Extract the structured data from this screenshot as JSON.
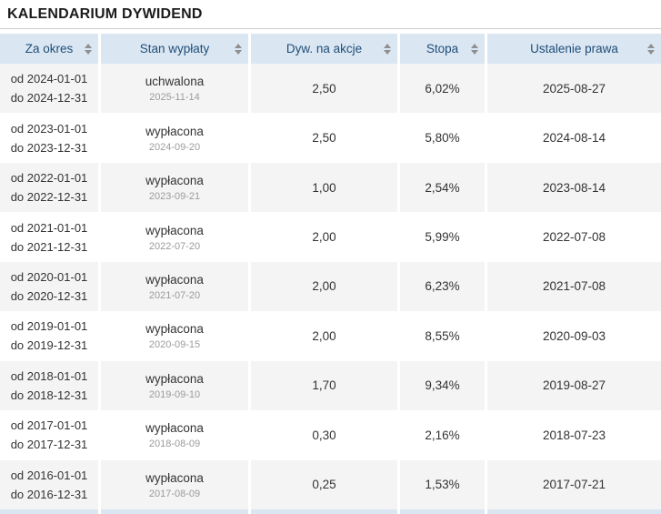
{
  "title": "KALENDARIUM DYWIDEND",
  "colors": {
    "header_bg": "#dae6f2",
    "header_text": "#1f4e78",
    "row_alt_bg": "#f4f4f4",
    "body_text": "#333333",
    "muted_text": "#9b9b9b",
    "sort_icon": "#8f8f8f",
    "title_border": "#cccccc"
  },
  "icons": {
    "sort": "sort-arrows-icon"
  },
  "table": {
    "columns": [
      {
        "label": "Za okres"
      },
      {
        "label": "Stan wypłaty"
      },
      {
        "label": "Dyw. na akcje"
      },
      {
        "label": "Stopa"
      },
      {
        "label": "Ustalenie prawa"
      }
    ],
    "rows": [
      {
        "period_from": "od 2024-01-01",
        "period_to": "do 2024-12-31",
        "status": "uchwalona",
        "status_date": "2025-11-14",
        "dividend": "2,50",
        "rate": "6,02%",
        "rights_date": "2025-08-27"
      },
      {
        "period_from": "od 2023-01-01",
        "period_to": "do 2023-12-31",
        "status": "wypłacona",
        "status_date": "2024-09-20",
        "dividend": "2,50",
        "rate": "5,80%",
        "rights_date": "2024-08-14"
      },
      {
        "period_from": "od 2022-01-01",
        "period_to": "do 2022-12-31",
        "status": "wypłacona",
        "status_date": "2023-09-21",
        "dividend": "1,00",
        "rate": "2,54%",
        "rights_date": "2023-08-14"
      },
      {
        "period_from": "od 2021-01-01",
        "period_to": "do 2021-12-31",
        "status": "wypłacona",
        "status_date": "2022-07-20",
        "dividend": "2,00",
        "rate": "5,99%",
        "rights_date": "2022-07-08"
      },
      {
        "period_from": "od 2020-01-01",
        "period_to": "do 2020-12-31",
        "status": "wypłacona",
        "status_date": "2021-07-20",
        "dividend": "2,00",
        "rate": "6,23%",
        "rights_date": "2021-07-08"
      },
      {
        "period_from": "od 2019-01-01",
        "period_to": "do 2019-12-31",
        "status": "wypłacona",
        "status_date": "2020-09-15",
        "dividend": "2,00",
        "rate": "8,55%",
        "rights_date": "2020-09-03"
      },
      {
        "period_from": "od 2018-01-01",
        "period_to": "do 2018-12-31",
        "status": "wypłacona",
        "status_date": "2019-09-10",
        "dividend": "1,70",
        "rate": "9,34%",
        "rights_date": "2019-08-27"
      },
      {
        "period_from": "od 2017-01-01",
        "period_to": "do 2017-12-31",
        "status": "wypłacona",
        "status_date": "2018-08-09",
        "dividend": "0,30",
        "rate": "2,16%",
        "rights_date": "2018-07-23"
      },
      {
        "period_from": "od 2016-01-01",
        "period_to": "do 2016-12-31",
        "status": "wypłacona",
        "status_date": "2017-08-09",
        "dividend": "0,25",
        "rate": "1,53%",
        "rights_date": "2017-07-21"
      }
    ]
  }
}
